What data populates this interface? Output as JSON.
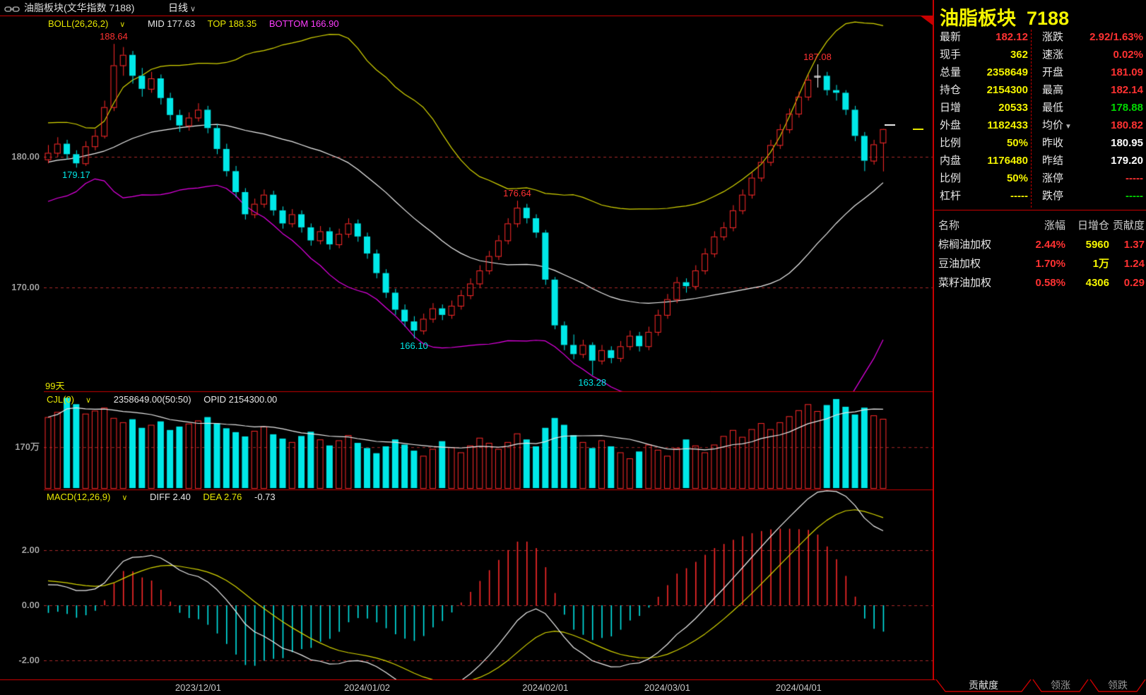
{
  "titlebar": {
    "title": "油脂板块(文华指数  7188)",
    "period": "日线",
    "chevron": "∨"
  },
  "main_chart": {
    "indicator": "BOLL(26,26,2)",
    "chevron": "∨",
    "mid_text": "MID 177.63",
    "top_text": "TOP 188.35",
    "bottom_text": "BOTTOM 166.90",
    "days_label": "99天",
    "y_ticks": [
      {
        "label": "180.00",
        "value": 180
      },
      {
        "label": "170.00",
        "value": 170
      }
    ],
    "annotations": [
      {
        "text": "188.64",
        "index": 7,
        "anchor": "high",
        "color": "#ff3232"
      },
      {
        "text": "179.17",
        "index": 3,
        "anchor": "low",
        "color": "#00e8e8"
      },
      {
        "text": "176.64",
        "index": 50,
        "anchor": "high",
        "color": "#ff3232"
      },
      {
        "text": "166.10",
        "index": 39,
        "anchor": "low",
        "color": "#00e8e8"
      },
      {
        "text": "163.28",
        "index": 58,
        "anchor": "low",
        "color": "#00e8e8"
      },
      {
        "text": "187.08",
        "index": 82,
        "anchor": "high",
        "color": "#ff3232"
      }
    ]
  },
  "volume_panel": {
    "indicator": "CJL(0)",
    "chevron": "∨",
    "value_text": "2358649.00(50:50)",
    "opid_text": "OPID 2154300.00",
    "y_tick": {
      "label": "170万",
      "value": 170
    }
  },
  "macd_panel": {
    "indicator": "MACD(12,26,9)",
    "chevron": "∨",
    "diff_text": "DIFF 2.40",
    "dea_text": "DEA 2.76",
    "hist_text": "-0.73",
    "y_ticks": [
      {
        "label": "2.00",
        "value": 2
      },
      {
        "label": "0.00",
        "value": 0
      },
      {
        "label": "-2.00",
        "value": -2
      }
    ]
  },
  "x_axis": {
    "dates": [
      {
        "label": "2023/12/01",
        "index": 16
      },
      {
        "label": "2024/01/02",
        "index": 34
      },
      {
        "label": "2024/02/01",
        "index": 53
      },
      {
        "label": "2024/03/01",
        "index": 66
      },
      {
        "label": "2024/04/01",
        "index": 80
      }
    ]
  },
  "quote_panel": {
    "title": "油脂板块",
    "code": "7188",
    "rows": [
      {
        "left": {
          "label": "最新",
          "value": "182.12",
          "color": "red"
        },
        "right": {
          "label": "涨跌",
          "value": "2.92/1.63%",
          "color": "red"
        }
      },
      {
        "left": {
          "label": "现手",
          "value": "362",
          "color": "yellow"
        },
        "right": {
          "label": "速涨",
          "value": "0.02%",
          "color": "red"
        }
      },
      {
        "left": {
          "label": "总量",
          "value": "2358649",
          "color": "yellow"
        },
        "right": {
          "label": "开盘",
          "value": "181.09",
          "color": "red"
        }
      },
      {
        "left": {
          "label": "持仓",
          "value": "2154300",
          "color": "yellow"
        },
        "right": {
          "label": "最高",
          "value": "182.14",
          "color": "red"
        }
      },
      {
        "left": {
          "label": "日增",
          "value": "20533",
          "color": "yellow"
        },
        "right": {
          "label": "最低",
          "value": "178.88",
          "color": "green"
        }
      },
      {
        "left": {
          "label": "外盘",
          "value": "1182433",
          "color": "yellow"
        },
        "right": {
          "label": "均价",
          "value": "180.82",
          "color": "red",
          "arrow": "▼"
        }
      },
      {
        "left": {
          "label": "比例",
          "value": "50%",
          "color": "yellow"
        },
        "right": {
          "label": "昨收",
          "value": "180.95",
          "color": "white"
        }
      },
      {
        "left": {
          "label": "内盘",
          "value": "1176480",
          "color": "yellow"
        },
        "right": {
          "label": "昨结",
          "value": "179.20",
          "color": "white"
        }
      },
      {
        "left": {
          "label": "比例",
          "value": "50%",
          "color": "yellow"
        },
        "right": {
          "label": "涨停",
          "value": "-----",
          "color": "red"
        }
      },
      {
        "left": {
          "label": "杠杆",
          "value": "-----",
          "color": "yellow"
        },
        "right": {
          "label": "跌停",
          "value": "-----",
          "color": "green"
        }
      }
    ]
  },
  "contribution_table": {
    "headers": [
      "名称",
      "涨幅",
      "日增仓",
      "贡献度"
    ],
    "rows": [
      {
        "name": "棕榈油加权",
        "change": "2.44%",
        "oi_change": "5960",
        "contribution": "1.37"
      },
      {
        "name": "豆油加权",
        "change": "1.70%",
        "oi_change": "1万",
        "contribution": "1.24"
      },
      {
        "name": "菜籽油加权",
        "change": "0.58%",
        "oi_change": "4306",
        "contribution": "0.29"
      }
    ]
  },
  "bottom_tabs": [
    {
      "label": "贡献度",
      "active": true
    },
    {
      "label": "领涨",
      "active": false
    },
    {
      "label": "领跌",
      "active": false
    }
  ],
  "colors": {
    "up": "#ff2a2a",
    "down": "#00e8e8",
    "white_candle": "#ffffff",
    "boll_mid": "#f0f0f0",
    "boll_top": "#d6d600",
    "boll_bottom": "#e800e8",
    "diff_line": "#f0f0f0",
    "dea_line": "#d6d600",
    "grid": "#a82828",
    "frame": "#c80000",
    "val_red": "#ff3232",
    "val_yellow": "#f5f500",
    "val_green": "#00d800",
    "val_white": "#ffffff"
  },
  "chart_data": {
    "type": "candlestick",
    "panels": [
      "price+BOLL(26,26,2)",
      "volume CJL",
      "MACD(12,26,9)"
    ],
    "price_ylim": [
      162.0,
      190.7
    ],
    "volume_ylim": [
      75,
      300
    ],
    "macd_ylim": [
      -2.7,
      4.2
    ],
    "white_candle_index": 82,
    "warmup_closes": [
      176.5,
      177.2,
      178.0,
      177.0,
      176.2,
      177.5,
      178.8,
      179.5,
      178.6,
      177.8,
      178.9,
      180.0,
      181.2,
      180.4,
      179.6,
      180.8,
      181.6,
      180.6,
      179.8,
      180.9,
      181.8,
      180.8,
      180.0,
      180.6,
      181.2,
      180.2
    ],
    "ohlc": [
      [
        179.8,
        180.9,
        179.5,
        180.3
      ],
      [
        180.3,
        181.5,
        180.0,
        181.0
      ],
      [
        181.0,
        181.3,
        179.8,
        180.2
      ],
      [
        180.2,
        180.5,
        179.17,
        179.5
      ],
      [
        179.5,
        181.2,
        179.3,
        180.8
      ],
      [
        180.8,
        182.1,
        180.5,
        181.6
      ],
      [
        181.6,
        184.3,
        181.4,
        183.8
      ],
      [
        183.8,
        188.64,
        183.5,
        187.0
      ],
      [
        187.0,
        188.4,
        186.2,
        187.8
      ],
      [
        187.8,
        188.1,
        185.6,
        186.2
      ],
      [
        186.2,
        186.8,
        184.6,
        185.2
      ],
      [
        185.2,
        186.5,
        184.9,
        186.0
      ],
      [
        186.0,
        186.3,
        184.0,
        184.5
      ],
      [
        184.5,
        184.9,
        182.8,
        183.2
      ],
      [
        183.2,
        183.6,
        181.9,
        182.4
      ],
      [
        182.4,
        183.4,
        182.0,
        183.0
      ],
      [
        183.0,
        184.1,
        182.7,
        183.6
      ],
      [
        183.6,
        183.9,
        181.8,
        182.2
      ],
      [
        182.2,
        182.5,
        180.2,
        180.6
      ],
      [
        180.6,
        181.0,
        178.5,
        178.9
      ],
      [
        178.9,
        179.3,
        176.9,
        177.3
      ],
      [
        177.3,
        177.6,
        175.2,
        175.6
      ],
      [
        175.6,
        176.8,
        175.3,
        176.4
      ],
      [
        176.4,
        177.5,
        176.1,
        177.1
      ],
      [
        177.1,
        177.4,
        175.5,
        175.9
      ],
      [
        175.9,
        176.2,
        174.5,
        174.9
      ],
      [
        174.9,
        176.0,
        174.6,
        175.6
      ],
      [
        175.6,
        175.9,
        174.2,
        174.6
      ],
      [
        174.6,
        174.9,
        173.2,
        173.6
      ],
      [
        173.6,
        174.7,
        173.3,
        174.3
      ],
      [
        174.3,
        174.6,
        172.9,
        173.3
      ],
      [
        173.3,
        174.5,
        173.0,
        174.1
      ],
      [
        174.1,
        175.3,
        173.8,
        174.9
      ],
      [
        174.9,
        175.2,
        173.5,
        173.9
      ],
      [
        173.9,
        174.2,
        172.2,
        172.6
      ],
      [
        172.6,
        172.9,
        170.7,
        171.1
      ],
      [
        171.1,
        171.4,
        169.2,
        169.6
      ],
      [
        169.6,
        169.9,
        167.9,
        168.3
      ],
      [
        168.3,
        168.7,
        167.0,
        167.4
      ],
      [
        167.4,
        167.8,
        166.1,
        166.7
      ],
      [
        166.7,
        168.0,
        166.4,
        167.6
      ],
      [
        167.6,
        168.8,
        167.3,
        168.4
      ],
      [
        168.4,
        168.7,
        167.5,
        167.9
      ],
      [
        167.9,
        169.0,
        167.6,
        168.6
      ],
      [
        168.6,
        169.8,
        168.3,
        169.4
      ],
      [
        169.4,
        170.7,
        169.1,
        170.3
      ],
      [
        170.3,
        171.7,
        170.0,
        171.3
      ],
      [
        171.3,
        172.8,
        171.0,
        172.4
      ],
      [
        172.4,
        174.0,
        172.1,
        173.6
      ],
      [
        173.6,
        175.3,
        173.3,
        174.9
      ],
      [
        174.9,
        176.64,
        174.6,
        176.1
      ],
      [
        176.1,
        176.4,
        174.9,
        175.3
      ],
      [
        175.3,
        175.6,
        173.8,
        174.2
      ],
      [
        174.2,
        174.4,
        170.2,
        170.6
      ],
      [
        170.6,
        170.8,
        166.8,
        167.1
      ],
      [
        167.1,
        167.4,
        165.2,
        165.6
      ],
      [
        165.6,
        166.4,
        164.5,
        164.9
      ],
      [
        164.9,
        166.0,
        164.6,
        165.6
      ],
      [
        165.6,
        165.8,
        163.28,
        164.4
      ],
      [
        164.4,
        165.6,
        164.1,
        165.2
      ],
      [
        165.2,
        165.5,
        164.2,
        164.6
      ],
      [
        164.6,
        165.9,
        164.3,
        165.5
      ],
      [
        165.5,
        166.7,
        165.2,
        166.3
      ],
      [
        166.3,
        166.6,
        165.1,
        165.5
      ],
      [
        165.5,
        167.0,
        165.2,
        166.6
      ],
      [
        166.6,
        168.3,
        166.3,
        167.9
      ],
      [
        167.9,
        169.5,
        167.6,
        169.1
      ],
      [
        169.1,
        170.8,
        168.8,
        170.4
      ],
      [
        170.4,
        170.7,
        169.6,
        170.1
      ],
      [
        170.1,
        171.7,
        169.8,
        171.3
      ],
      [
        171.3,
        173.0,
        171.0,
        172.6
      ],
      [
        172.6,
        174.3,
        172.3,
        173.9
      ],
      [
        173.9,
        175.0,
        173.6,
        174.6
      ],
      [
        174.6,
        176.3,
        174.3,
        175.9
      ],
      [
        175.9,
        177.5,
        175.6,
        177.1
      ],
      [
        177.1,
        178.8,
        176.8,
        178.4
      ],
      [
        178.4,
        180.0,
        178.1,
        179.6
      ],
      [
        179.6,
        181.3,
        179.3,
        180.9
      ],
      [
        180.9,
        182.5,
        180.6,
        182.1
      ],
      [
        182.1,
        183.7,
        181.8,
        183.3
      ],
      [
        183.3,
        185.0,
        183.0,
        184.6
      ],
      [
        184.6,
        186.3,
        184.3,
        185.9
      ],
      [
        186.2,
        187.08,
        185.3,
        186.2
      ],
      [
        186.2,
        186.5,
        184.7,
        185.1
      ],
      [
        185.1,
        185.5,
        184.3,
        184.9
      ],
      [
        184.9,
        185.1,
        183.2,
        183.6
      ],
      [
        183.6,
        183.9,
        181.2,
        181.6
      ],
      [
        181.6,
        181.9,
        178.9,
        179.7
      ],
      [
        179.7,
        181.3,
        179.4,
        180.95
      ],
      [
        181.09,
        182.14,
        178.88,
        182.12
      ]
    ],
    "volumes": [
      240,
      252,
      285,
      270,
      248,
      255,
      262,
      238,
      228,
      235,
      215,
      222,
      230,
      210,
      218,
      225,
      232,
      240,
      226,
      214,
      205,
      195,
      208,
      218,
      200,
      190,
      182,
      196,
      206,
      188,
      174,
      186,
      198,
      180,
      168,
      156,
      172,
      188,
      176,
      162,
      150,
      166,
      184,
      170,
      158,
      174,
      192,
      180,
      166,
      182,
      202,
      188,
      172,
      215,
      238,
      222,
      198,
      182,
      168,
      186,
      172,
      158,
      144,
      160,
      176,
      164,
      150,
      168,
      188,
      174,
      158,
      176,
      196,
      210,
      194,
      212,
      226,
      212,
      228,
      242,
      256,
      270,
      254,
      268,
      282,
      264,
      246,
      262,
      244,
      236
    ]
  }
}
